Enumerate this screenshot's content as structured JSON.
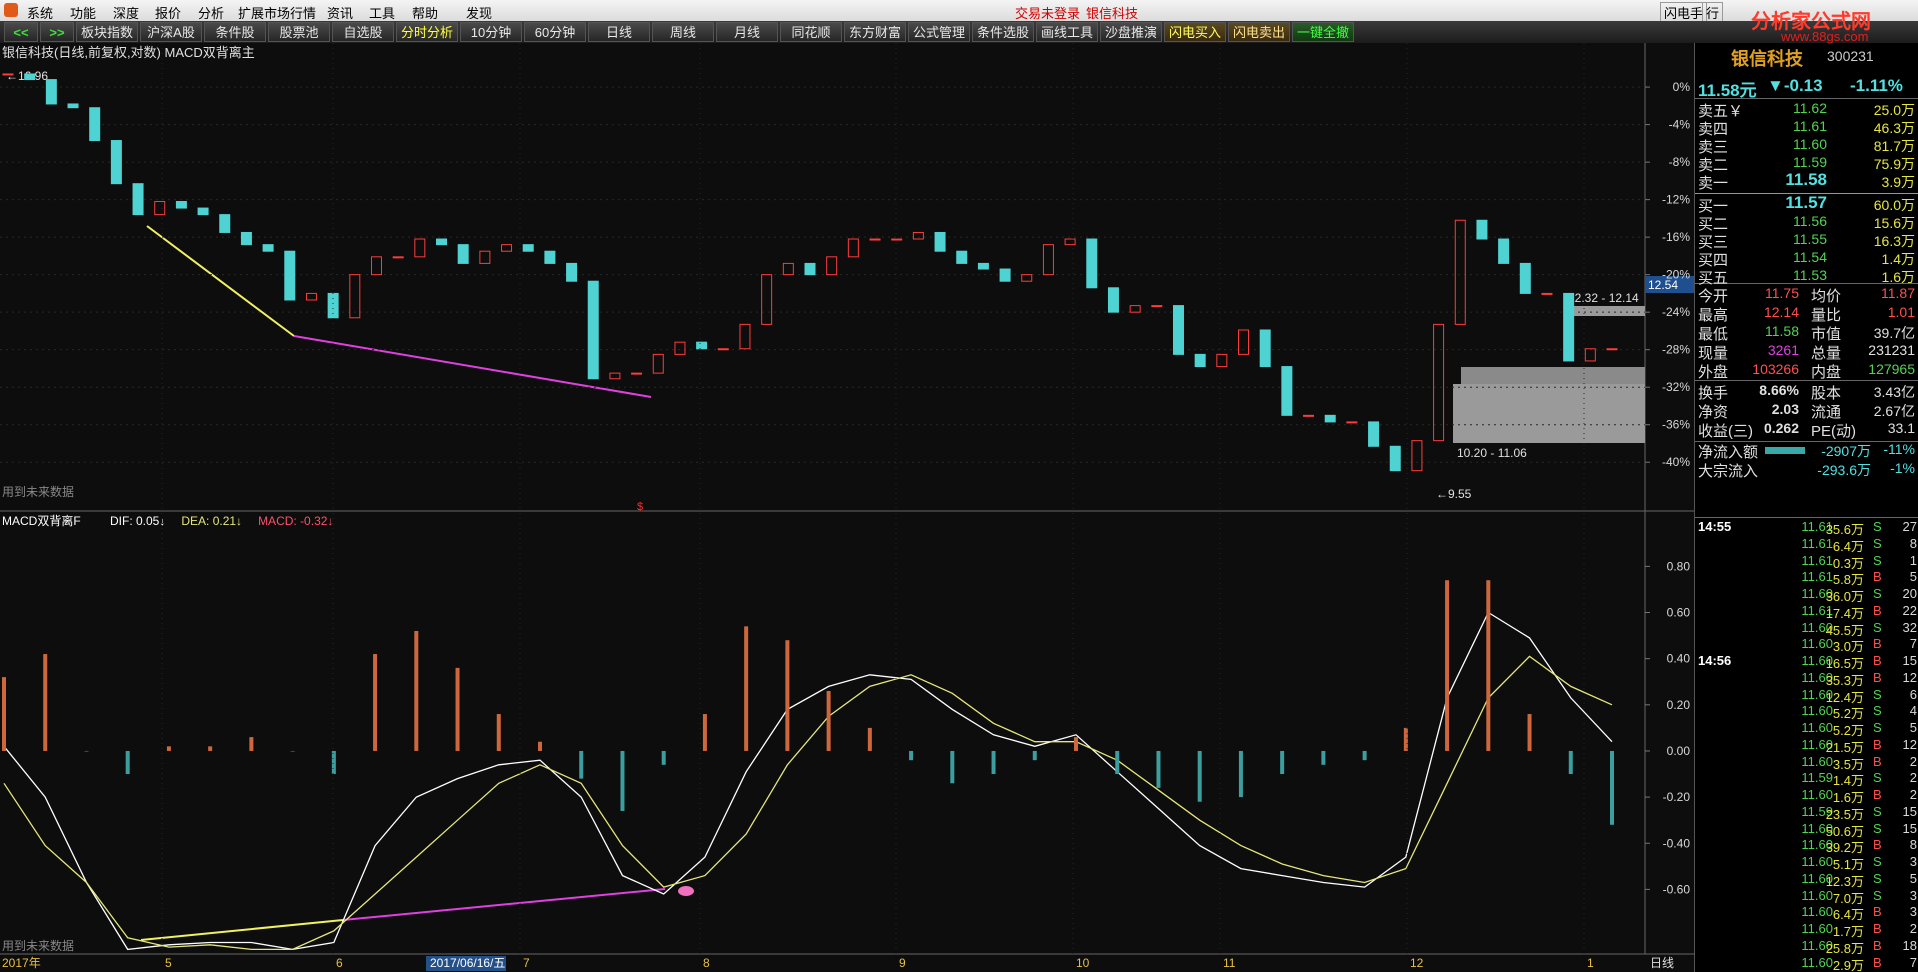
{
  "menu": [
    "系统",
    "功能",
    "深度",
    "报价",
    "分析",
    "扩展市场行情",
    "资讯",
    "工具",
    "帮助",
    "发现"
  ],
  "status": [
    "交易未登录",
    "银信科技"
  ],
  "top_right": [
    "闪电手",
    "行"
  ],
  "toolbar": [
    "<<",
    ">>",
    "板块指数",
    "沪深A股",
    "条件股",
    "股票池",
    "自选股",
    "分时分析",
    "10分钟",
    "60分钟",
    "日线",
    "周线",
    "月线",
    "同花顺",
    "东方财富",
    "公式管理",
    "条件选股",
    "画线工具",
    "沙盘推演",
    "闪电买入",
    "闪电卖出",
    "一键全撤"
  ],
  "chart_data": [
    {
      "type": "candlestick",
      "title": "银信科技(日线,前复权,对数) MACD双背离主",
      "closes": [
        1.4,
        0.8,
        -1.8,
        -2.2,
        -5.7,
        -10.3,
        -13.6,
        -12.2,
        -12.9,
        -13.6,
        -15.5,
        -16.8,
        -17.5,
        -22.7,
        -22,
        -24.6,
        -20,
        -18.1,
        -18.1,
        -16.2,
        -16.8,
        -18.8,
        -17.5,
        -16.8,
        -17.5,
        -18.8,
        -20.7,
        -31.1,
        -30.5,
        -30.5,
        -28.5,
        -27.2,
        -27.9,
        -27.9,
        -25.3,
        -20,
        -18.8,
        -20,
        -18.1,
        -16.2,
        -16.2,
        -16.2,
        -15.5,
        -17.5,
        -18.8,
        -19.4,
        -20.7,
        -20,
        -16.8,
        -16.2,
        -21.4,
        -24,
        -23.3,
        -23.3,
        -28.5,
        -29.8,
        -28.5,
        -25.9,
        -29.8,
        -35,
        -35,
        -35.7,
        -35.7,
        -38.3,
        -40.9,
        -37.7,
        -25.3,
        -14.2,
        -16.2,
        -18.8,
        -22,
        -22,
        -29.2,
        -27.9,
        -27.9
      ],
      "ylim": [
        -45.2,
        4.7
      ],
      "yticks": [
        {
          "value": 0,
          "label": "0%"
        },
        {
          "value": -4,
          "label": "-4%"
        },
        {
          "value": -8,
          "label": "-8%"
        },
        {
          "value": -12,
          "label": "-12%"
        },
        {
          "value": -16,
          "label": "-16%"
        },
        {
          "value": -20,
          "label": "-20%"
        },
        {
          "value": -24,
          "label": "-24%"
        },
        {
          "value": -28,
          "label": "-28%"
        },
        {
          "value": -32,
          "label": "-32%"
        },
        {
          "value": -36,
          "label": "-36%"
        },
        {
          "value": -40,
          "label": "-40%"
        }
      ],
      "grid": true,
      "up_color": "#ff3c3c",
      "down_color": "#4fd2d2",
      "annotations": [
        "←16.96",
        "←9.55",
        "12.32 - 12.14",
        "10.20 - 11.06",
        "12.54",
        "$"
      ],
      "footnote": "用到未来数据"
    },
    {
      "type": "macd",
      "title": "MACD双背离F",
      "series": [
        {
          "name": "DIF: 0.05↓",
          "color": "#ffffff",
          "values": [
            0.02,
            -0.2,
            -0.57,
            -0.86,
            -0.84,
            -0.83,
            -0.83,
            -0.86,
            -0.83,
            -0.41,
            -0.2,
            -0.12,
            -0.06,
            -0.04,
            -0.2,
            -0.54,
            -0.62,
            -0.46,
            -0.09,
            0.18,
            0.28,
            0.33,
            0.31,
            0.18,
            0.07,
            0.02,
            0.07,
            -0.09,
            -0.25,
            -0.41,
            -0.51,
            -0.54,
            -0.57,
            -0.59,
            -0.46,
            0.23,
            0.6,
            0.49,
            0.23,
            0.04
          ]
        },
        {
          "name": "DEA: 0.21↓",
          "color": "#e6e67a",
          "values": [
            -0.14,
            -0.41,
            -0.57,
            -0.81,
            -0.85,
            -0.84,
            -0.86,
            -0.86,
            -0.78,
            -0.62,
            -0.46,
            -0.3,
            -0.14,
            -0.06,
            -0.14,
            -0.41,
            -0.59,
            -0.54,
            -0.36,
            -0.06,
            0.15,
            0.28,
            0.33,
            0.25,
            0.12,
            0.04,
            0.04,
            -0.04,
            -0.17,
            -0.3,
            -0.41,
            -0.49,
            -0.54,
            -0.57,
            -0.51,
            -0.14,
            0.23,
            0.41,
            0.28,
            0.2
          ]
        },
        {
          "name": "MACD: -0.32↓",
          "color": "#ff4f6a",
          "up_color": "#cf673c",
          "down_color": "#3c9e9e",
          "values": [
            0.32,
            0.42,
            0,
            -0.1,
            0.02,
            0.02,
            0.06,
            0,
            -0.1,
            0.42,
            0.52,
            0.36,
            0.16,
            0.04,
            -0.12,
            -0.26,
            -0.06,
            0.16,
            0.54,
            0.48,
            0.26,
            0.1,
            -0.04,
            -0.14,
            -0.1,
            -0.04,
            0.06,
            -0.1,
            -0.16,
            -0.22,
            -0.2,
            -0.1,
            -0.06,
            -0.04,
            0.1,
            0.74,
            0.74,
            0.16,
            -0.1,
            -0.32
          ]
        }
      ],
      "ylim": [
        -0.88,
        1.04
      ],
      "yticks": [
        {
          "value": 0.8,
          "label": "0.80"
        },
        {
          "value": 0.6,
          "label": "0.60"
        },
        {
          "value": 0.4,
          "label": "0.40"
        },
        {
          "value": 0.2,
          "label": "0.20"
        },
        {
          "value": 0,
          "label": "0.00"
        },
        {
          "value": -0.2,
          "label": "-0.20"
        },
        {
          "value": -0.4,
          "label": "-0.40"
        },
        {
          "value": -0.6,
          "label": "-0.60"
        }
      ],
      "footnote": "用到未来数据"
    }
  ],
  "date_axis": [
    "2017年",
    "5",
    "6",
    "2017/06/16/五",
    "7",
    "8",
    "9",
    "10",
    "11",
    "12",
    "1"
  ],
  "period": "日线",
  "quote": {
    "watermark": [
      "分析家公式网",
      "www.88gs.com"
    ],
    "name": "银信科技",
    "code": "300231",
    "price": "11.58元",
    "change": "▼-0.13",
    "pct": "-1.11%"
  },
  "order_book": [
    [
      "卖五￥",
      "11.62",
      "25.0万"
    ],
    [
      "卖四",
      "11.61",
      "46.3万"
    ],
    [
      "卖三",
      "11.60",
      "81.7万"
    ],
    [
      "卖二",
      "11.59",
      "75.9万"
    ],
    [
      "卖一",
      "11.58",
      "3.9万"
    ],
    [
      "买一",
      "11.57",
      "60.0万"
    ],
    [
      "买二",
      "11.56",
      "15.6万"
    ],
    [
      "买三",
      "11.55",
      "16.3万"
    ],
    [
      "买四",
      "11.54",
      "1.4万"
    ],
    [
      "买五",
      "11.53",
      "1.6万"
    ]
  ],
  "stats": [
    [
      "今开",
      "11.75",
      "均价",
      "11.87"
    ],
    [
      "最高",
      "12.14",
      "量比",
      "1.01"
    ],
    [
      "最低",
      "11.58",
      "市值",
      "39.7亿"
    ],
    [
      "现量",
      "3261",
      "总量",
      "231231"
    ],
    [
      "外盘",
      "103266",
      "内盘",
      "127965"
    ],
    [
      "换手",
      "8.66%",
      "股本",
      "3.43亿"
    ],
    [
      "净资",
      "2.03",
      "流通",
      "2.67亿"
    ],
    [
      "收益(三)",
      "0.262",
      "PE(动)",
      "33.1"
    ]
  ],
  "flows": [
    [
      "净流入额",
      "-2907万",
      "-11%"
    ],
    [
      "大宗流入",
      "-293.6万",
      "-1%"
    ]
  ],
  "trades": [
    [
      "14:55",
      "11.61",
      "35.6万",
      "S",
      "27"
    ],
    [
      null,
      "11.61",
      "6.4万",
      "S",
      "8"
    ],
    [
      null,
      "11.61",
      "0.3万",
      "S",
      "1"
    ],
    [
      null,
      "11.61",
      "5.8万",
      "B",
      "5"
    ],
    [
      null,
      "11.60",
      "36.0万",
      "S",
      "20"
    ],
    [
      null,
      "11.61",
      "17.4万",
      "B",
      "22"
    ],
    [
      null,
      "11.60",
      "45.5万",
      "S",
      "32"
    ],
    [
      null,
      "11.60",
      "3.0万",
      "B",
      "7"
    ],
    [
      "14:56",
      "11.60",
      "16.5万",
      "B",
      "15"
    ],
    [
      null,
      "11.60",
      "35.3万",
      "B",
      "12"
    ],
    [
      null,
      "11.60",
      "12.4万",
      "S",
      "6"
    ],
    [
      null,
      "11.60",
      "5.2万",
      "S",
      "4"
    ],
    [
      null,
      "11.60",
      "5.2万",
      "S",
      "5"
    ],
    [
      null,
      "11.60",
      "21.5万",
      "B",
      "12"
    ],
    [
      null,
      "11.60",
      "3.5万",
      "B",
      "2"
    ],
    [
      null,
      "11.59",
      "1.4万",
      "S",
      "2"
    ],
    [
      null,
      "11.60",
      "1.6万",
      "B",
      "2"
    ],
    [
      null,
      "11.59",
      "23.5万",
      "S",
      "15"
    ],
    [
      null,
      "11.60",
      "50.6万",
      "S",
      "15"
    ],
    [
      null,
      "11.60",
      "39.2万",
      "B",
      "8"
    ],
    [
      null,
      "11.60",
      "5.1万",
      "S",
      "3"
    ],
    [
      null,
      "11.60",
      "12.3万",
      "S",
      "5"
    ],
    [
      null,
      "11.60",
      "7.0万",
      "S",
      "3"
    ],
    [
      null,
      "11.60",
      "6.4万",
      "B",
      "3"
    ],
    [
      null,
      "11.60",
      "1.7万",
      "B",
      "2"
    ],
    [
      null,
      "11.60",
      "25.8万",
      "B",
      "18"
    ],
    [
      null,
      "11.60",
      "2.9万",
      "B",
      "7"
    ]
  ]
}
